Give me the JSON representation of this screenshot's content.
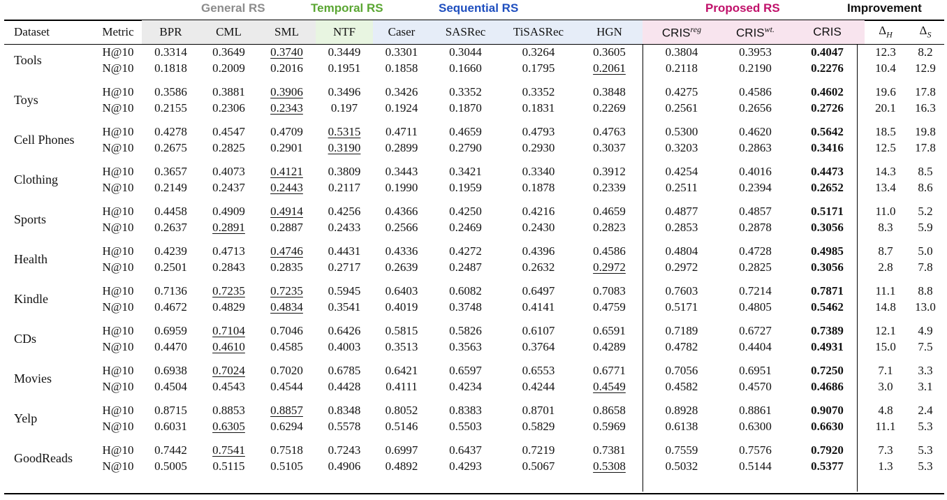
{
  "header_groups": {
    "general": {
      "label": "General RS",
      "color": "#8c8c8c"
    },
    "temporal": {
      "label": "Temporal RS",
      "color": "#5aa632"
    },
    "sequential": {
      "label": "Sequential RS",
      "color": "#1f4fbf"
    },
    "proposed": {
      "label": "Proposed RS",
      "color": "#c0106a"
    },
    "improvement": {
      "label": "Improvement",
      "color": "#111111"
    }
  },
  "header_bg": {
    "general": "#ebebeb",
    "temporal": "#e8f5e1",
    "sequential": "#e6edf8",
    "proposed": "#f8e4ee"
  },
  "columns": {
    "dataset": "Dataset",
    "metric": "Metric",
    "bpr": "BPR",
    "cml": "CML",
    "sml": "SML",
    "ntf": "NTF",
    "caser": "Caser",
    "sasrec": "SASRec",
    "tisasrec": "TiSASRec",
    "hgn": "HGN",
    "cris_reg_base": "CRIS",
    "cris_reg_sup": "reg",
    "cris_wt_base": "CRIS",
    "cris_wt_sup": "wt.",
    "cris": "CRIS",
    "delta_h_sym": "Δ",
    "delta_h_sub": "H",
    "delta_s_sym": "Δ",
    "delta_s_sub": "S"
  },
  "metric_labels": [
    "H@10",
    "N@10"
  ],
  "rows": [
    {
      "dataset": "Tools",
      "h": [
        "0.3314",
        "0.3649",
        "0.3740",
        "0.3449",
        "0.3301",
        "0.3044",
        "0.3264",
        "0.3605",
        "0.3804",
        "0.3953",
        "0.4047",
        "12.3",
        "8.2"
      ],
      "n": [
        "0.1818",
        "0.2009",
        "0.2016",
        "0.1951",
        "0.1858",
        "0.1660",
        "0.1795",
        "0.2061",
        "0.2118",
        "0.2190",
        "0.2276",
        "10.4",
        "12.9"
      ],
      "hu": [
        2
      ],
      "nu": [
        7
      ]
    },
    {
      "dataset": "Toys",
      "h": [
        "0.3586",
        "0.3881",
        "0.3906",
        "0.3496",
        "0.3426",
        "0.3352",
        "0.3352",
        "0.3848",
        "0.4275",
        "0.4586",
        "0.4602",
        "19.6",
        "17.8"
      ],
      "n": [
        "0.2155",
        "0.2306",
        "0.2343",
        "0.197",
        "0.1924",
        "0.1870",
        "0.1831",
        "0.2269",
        "0.2561",
        "0.2656",
        "0.2726",
        "20.1",
        "16.3"
      ],
      "hu": [
        2
      ],
      "nu": [
        2
      ]
    },
    {
      "dataset": "Cell Phones",
      "h": [
        "0.4278",
        "0.4547",
        "0.4709",
        "0.5315",
        "0.4711",
        "0.4659",
        "0.4793",
        "0.4763",
        "0.5300",
        "0.4620",
        "0.5642",
        "18.5",
        "19.8"
      ],
      "n": [
        "0.2675",
        "0.2825",
        "0.2901",
        "0.3190",
        "0.2899",
        "0.2790",
        "0.2930",
        "0.3037",
        "0.3203",
        "0.2863",
        "0.3416",
        "12.5",
        "17.8"
      ],
      "hu": [
        3
      ],
      "nu": [
        3
      ]
    },
    {
      "dataset": "Clothing",
      "h": [
        "0.3657",
        "0.4073",
        "0.4121",
        "0.3809",
        "0.3443",
        "0.3421",
        "0.3340",
        "0.3912",
        "0.4254",
        "0.4016",
        "0.4473",
        "14.3",
        "8.5"
      ],
      "n": [
        "0.2149",
        "0.2437",
        "0.2443",
        "0.2117",
        "0.1990",
        "0.1959",
        "0.1878",
        "0.2339",
        "0.2511",
        "0.2394",
        "0.2652",
        "13.4",
        "8.6"
      ],
      "hu": [
        2
      ],
      "nu": [
        2
      ]
    },
    {
      "dataset": "Sports",
      "h": [
        "0.4458",
        "0.4909",
        "0.4914",
        "0.4256",
        "0.4366",
        "0.4250",
        "0.4216",
        "0.4659",
        "0.4877",
        "0.4857",
        "0.5171",
        "11.0",
        "5.2"
      ],
      "n": [
        "0.2637",
        "0.2891",
        "0.2887",
        "0.2433",
        "0.2566",
        "0.2469",
        "0.2430",
        "0.2823",
        "0.2853",
        "0.2878",
        "0.3056",
        "8.3",
        "5.9"
      ],
      "hu": [
        2
      ],
      "nu": [
        1
      ]
    },
    {
      "dataset": "Health",
      "h": [
        "0.4239",
        "0.4713",
        "0.4746",
        "0.4431",
        "0.4336",
        "0.4272",
        "0.4396",
        "0.4586",
        "0.4804",
        "0.4728",
        "0.4985",
        "8.7",
        "5.0"
      ],
      "n": [
        "0.2501",
        "0.2843",
        "0.2835",
        "0.2717",
        "0.2639",
        "0.2487",
        "0.2632",
        "0.2972",
        "0.2972",
        "0.2825",
        "0.3056",
        "2.8",
        "7.8"
      ],
      "hu": [
        2
      ],
      "nu": [
        7
      ]
    },
    {
      "dataset": "Kindle",
      "h": [
        "0.7136",
        "0.7235",
        "0.7235",
        "0.5945",
        "0.6403",
        "0.6082",
        "0.6497",
        "0.7083",
        "0.7603",
        "0.7214",
        "0.7871",
        "11.1",
        "8.8"
      ],
      "n": [
        "0.4672",
        "0.4829",
        "0.4834",
        "0.3541",
        "0.4019",
        "0.3748",
        "0.4141",
        "0.4759",
        "0.5171",
        "0.4805",
        "0.5462",
        "14.8",
        "13.0"
      ],
      "hu": [
        1,
        2
      ],
      "nu": [
        2
      ]
    },
    {
      "dataset": "CDs",
      "h": [
        "0.6959",
        "0.7104",
        "0.7046",
        "0.6426",
        "0.5815",
        "0.5826",
        "0.6107",
        "0.6591",
        "0.7189",
        "0.6727",
        "0.7389",
        "12.1",
        "4.9"
      ],
      "n": [
        "0.4470",
        "0.4610",
        "0.4585",
        "0.4003",
        "0.3513",
        "0.3563",
        "0.3764",
        "0.4289",
        "0.4782",
        "0.4404",
        "0.4931",
        "15.0",
        "7.5"
      ],
      "hu": [
        1
      ],
      "nu": [
        1
      ]
    },
    {
      "dataset": "Movies",
      "h": [
        "0.6938",
        "0.7024",
        "0.7020",
        "0.6785",
        "0.6421",
        "0.6597",
        "0.6553",
        "0.6771",
        "0.7056",
        "0.6951",
        "0.7250",
        "7.1",
        "3.3"
      ],
      "n": [
        "0.4504",
        "0.4543",
        "0.4544",
        "0.4428",
        "0.4111",
        "0.4234",
        "0.4244",
        "0.4549",
        "0.4582",
        "0.4570",
        "0.4686",
        "3.0",
        "3.1"
      ],
      "hu": [
        1
      ],
      "nu": [
        7
      ]
    },
    {
      "dataset": "Yelp",
      "h": [
        "0.8715",
        "0.8853",
        "0.8857",
        "0.8348",
        "0.8052",
        "0.8383",
        "0.8701",
        "0.8658",
        "0.8928",
        "0.8861",
        "0.9070",
        "4.8",
        "2.4"
      ],
      "n": [
        "0.6031",
        "0.6305",
        "0.6294",
        "0.5578",
        "0.5146",
        "0.5503",
        "0.5829",
        "0.5969",
        "0.6138",
        "0.6300",
        "0.6630",
        "11.1",
        "5.3"
      ],
      "hu": [
        2
      ],
      "nu": [
        1
      ]
    },
    {
      "dataset": "GoodReads",
      "h": [
        "0.7442",
        "0.7541",
        "0.7518",
        "0.7243",
        "0.6997",
        "0.6437",
        "0.7219",
        "0.7381",
        "0.7559",
        "0.7576",
        "0.7920",
        "7.3",
        "5.3"
      ],
      "n": [
        "0.5005",
        "0.5115",
        "0.5105",
        "0.4906",
        "0.4892",
        "0.4293",
        "0.5067",
        "0.5308",
        "0.5032",
        "0.5144",
        "0.5377",
        "1.3",
        "5.3"
      ],
      "hu": [
        1
      ],
      "nu": [
        7
      ]
    }
  ]
}
